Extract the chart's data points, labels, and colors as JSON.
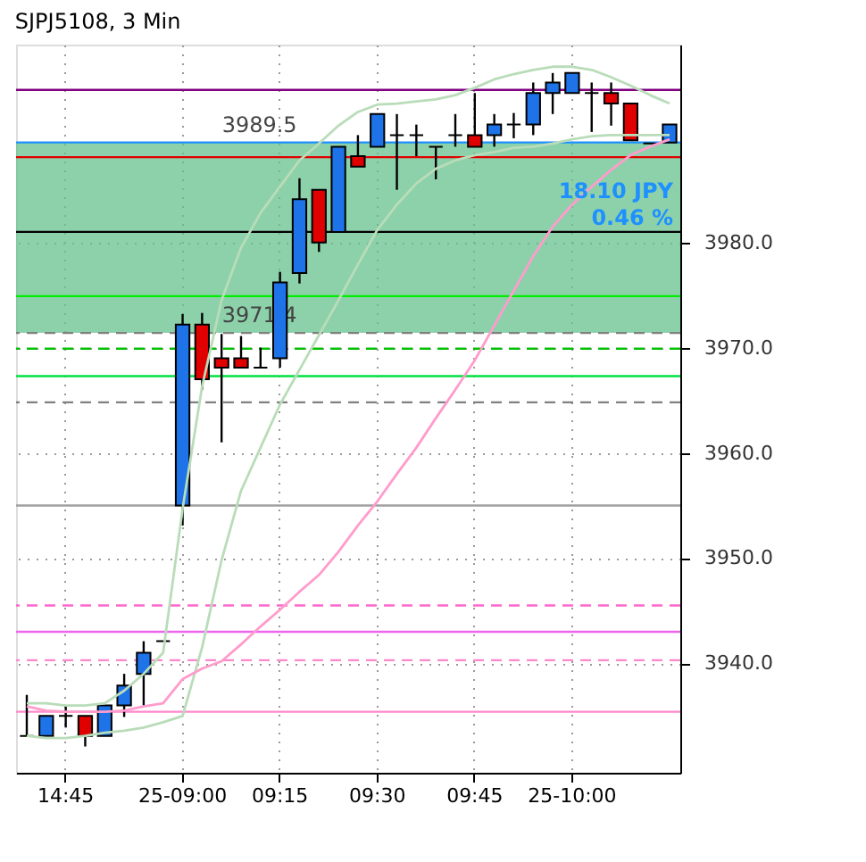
{
  "chart_data": {
    "type": "candlestick",
    "title": "SJPJ5108, 3 Min",
    "categories": [
      null,
      null,
      "14:45",
      null,
      null,
      null,
      null,
      null,
      "25-09:00",
      null,
      null,
      null,
      null,
      "09:15",
      null,
      null,
      null,
      null,
      "09:30",
      null,
      null,
      null,
      null,
      "09:45",
      null,
      null,
      null,
      null,
      "25-10:00",
      null,
      null,
      null,
      null,
      null
    ],
    "ohlc": [
      [
        3933.1,
        3937.0,
        3933.1,
        3933.1
      ],
      [
        3933.1,
        3935.0,
        3933.1,
        3935.0
      ],
      [
        3935.0,
        3936.0,
        3933.9,
        3935.0
      ],
      [
        3935.0,
        3935.0,
        3932.1,
        3933.1
      ],
      [
        3933.1,
        3936.0,
        3933.1,
        3936.0
      ],
      [
        3936.0,
        3939.0,
        3934.9,
        3937.9
      ],
      [
        3939.0,
        3942.1,
        3936.0,
        3941.0
      ],
      [
        3942.1,
        3942.1,
        3942.1,
        3942.1
      ],
      [
        3955.0,
        3973.2,
        3953.1,
        3972.2
      ],
      [
        3972.2,
        3973.3,
        3966.0,
        3967.0
      ],
      [
        3969.0,
        3971.3,
        3961.0,
        3968.1
      ],
      [
        3969.0,
        3971.1,
        3968.1,
        3968.1
      ],
      [
        3968.1,
        3970.0,
        3968.1,
        3968.1
      ],
      [
        3969.0,
        3977.2,
        3968.1,
        3976.2
      ],
      [
        3977.1,
        3986.1,
        3976.1,
        3984.1
      ],
      [
        3985.0,
        3985.0,
        3979.1,
        3980.0
      ],
      [
        3981.0,
        3989.1,
        3981.0,
        3989.1
      ],
      [
        3988.2,
        3990.2,
        3987.2,
        3987.2
      ],
      [
        3989.1,
        3992.2,
        3989.1,
        3992.2
      ],
      [
        3990.2,
        3992.2,
        3985.0,
        3990.2
      ],
      [
        3990.2,
        3991.2,
        3988.2,
        3990.2
      ],
      [
        3989.1,
        3989.1,
        3986.0,
        3989.1
      ],
      [
        3990.2,
        3992.2,
        3989.1,
        3990.2
      ],
      [
        3990.2,
        3994.2,
        3989.1,
        3989.1
      ],
      [
        3990.2,
        3992.2,
        3989.1,
        3991.2
      ],
      [
        3991.2,
        3992.3,
        3989.9,
        3991.2
      ],
      [
        3991.2,
        3995.2,
        3990.2,
        3994.2
      ],
      [
        3994.2,
        3996.1,
        3992.2,
        3995.2
      ],
      [
        3994.2,
        3996.1,
        3994.2,
        3996.1
      ],
      [
        3994.2,
        3995.2,
        3990.5,
        3994.2
      ],
      [
        3994.2,
        3995.2,
        3991.1,
        3993.2
      ],
      [
        3993.2,
        3993.2,
        3989.7,
        3989.7
      ],
      [
        3989.4,
        3989.4,
        3989.4,
        3989.4
      ],
      [
        3989.5,
        3991.2,
        3989.5,
        3991.2
      ]
    ],
    "colors": [
      "#000000",
      "#1e73e8",
      "#000000",
      "#e00000",
      "#1e73e8",
      "#1e73e8",
      "#1e73e8",
      "#000000",
      "#1e73e8",
      "#e00000",
      "#e00000",
      "#e00000",
      "#000000",
      "#1e73e8",
      "#1e73e8",
      "#e00000",
      "#1e73e8",
      "#e00000",
      "#1e73e8",
      "#000000",
      "#000000",
      "#000000",
      "#000000",
      "#e00000",
      "#1e73e8",
      "#000000",
      "#1e73e8",
      "#1e73e8",
      "#1e73e8",
      "#000000",
      "#e00000",
      "#e00000",
      "#000000",
      "#1e73e8"
    ],
    "series": [
      {
        "type": "line",
        "color": "#b9dcb9",
        "values": [
          3936.2,
          3936.2,
          3936.0,
          3936.0,
          3936.2,
          3937.4,
          3939.0,
          3941.0,
          3954.7,
          3966.3,
          3974.5,
          3979.5,
          3982.8,
          3985.3,
          3987.8,
          3989.4,
          3991.1,
          3992.4,
          3993.1,
          3993.2,
          3993.4,
          3993.6,
          3994.0,
          3994.7,
          3995.5,
          3996.0,
          3996.4,
          3996.7,
          3996.7,
          3996.4,
          3995.7,
          3994.9,
          3994.0,
          3993.2
        ]
      },
      {
        "type": "line",
        "color": "#b9dcb9",
        "values": [
          3933.1,
          3932.9,
          3932.9,
          3933.1,
          3933.4,
          3933.6,
          3933.9,
          3934.4,
          3935.0,
          3941.5,
          3949.8,
          3956.4,
          3960.5,
          3964.6,
          3967.9,
          3971.2,
          3974.5,
          3977.9,
          3981.2,
          3983.6,
          3985.6,
          3987.0,
          3987.8,
          3988.3,
          3988.6,
          3989.0,
          3989.1,
          3989.4,
          3989.8,
          3990.1,
          3990.2,
          3990.2,
          3990.2,
          3990.2
        ]
      },
      {
        "type": "line",
        "color": "#ff9ccc",
        "values": [
          3935.9,
          3935.5,
          3935.4,
          3935.4,
          3935.4,
          3935.5,
          3935.9,
          3936.2,
          3938.5,
          3939.5,
          3940.2,
          3941.8,
          3943.5,
          3945.1,
          3946.8,
          3948.4,
          3950.6,
          3953.1,
          3955.4,
          3958.0,
          3960.5,
          3963.3,
          3966.0,
          3968.8,
          3972.1,
          3975.4,
          3978.7,
          3981.5,
          3983.6,
          3985.3,
          3986.9,
          3988.3,
          3989.1,
          3989.8
        ]
      }
    ],
    "ylim": [
      3929.6,
      3998.8
    ],
    "yticks": [
      {
        "value": 3940,
        "label": "3940.0"
      },
      {
        "value": 3950,
        "label": "3950.0"
      },
      {
        "value": 3960,
        "label": "3960.0"
      },
      {
        "value": 3970,
        "label": "3970.0"
      },
      {
        "value": 3980,
        "label": "3980.0"
      }
    ],
    "grid": true,
    "bands": [
      {
        "axis": "y",
        "from": 3971.4,
        "to": 3989.5,
        "color": "#66c28e"
      }
    ],
    "ref_lines": [
      {
        "axis": "y",
        "value": 3994.5,
        "color": "#800080"
      },
      {
        "axis": "y",
        "value": 3989.5,
        "label": "3989.5",
        "color": "#1e90ff"
      },
      {
        "axis": "y",
        "value": 3988.1,
        "color": "#e00000"
      },
      {
        "axis": "y",
        "value": 3981.0,
        "color": "#000000"
      },
      {
        "axis": "y",
        "value": 3974.9,
        "color": "#00ee00"
      },
      {
        "axis": "y",
        "value": 3971.4,
        "label": "3971.4",
        "color": "#808080",
        "line_style": "dashed"
      },
      {
        "axis": "y",
        "value": 3969.9,
        "color": "#00c000",
        "line_style": "dashed"
      },
      {
        "axis": "y",
        "value": 3967.3,
        "color": "#00e040"
      },
      {
        "axis": "y",
        "value": 3964.8,
        "color": "#808080",
        "line_style": "dashed"
      },
      {
        "axis": "y",
        "value": 3955.0,
        "color": "#a0a0a0"
      },
      {
        "axis": "y",
        "value": 3945.5,
        "color": "#ff66cc",
        "line_style": "dashed"
      },
      {
        "axis": "y",
        "value": 3943.0,
        "color": "#ee66ee"
      },
      {
        "axis": "y",
        "value": 3940.3,
        "color": "#ff88cc",
        "line_style": "dashed"
      },
      {
        "axis": "y",
        "value": 3935.4,
        "color": "#ff88cc"
      }
    ],
    "annotations": [
      "18.10 JPY",
      "0.46 %"
    ]
  }
}
